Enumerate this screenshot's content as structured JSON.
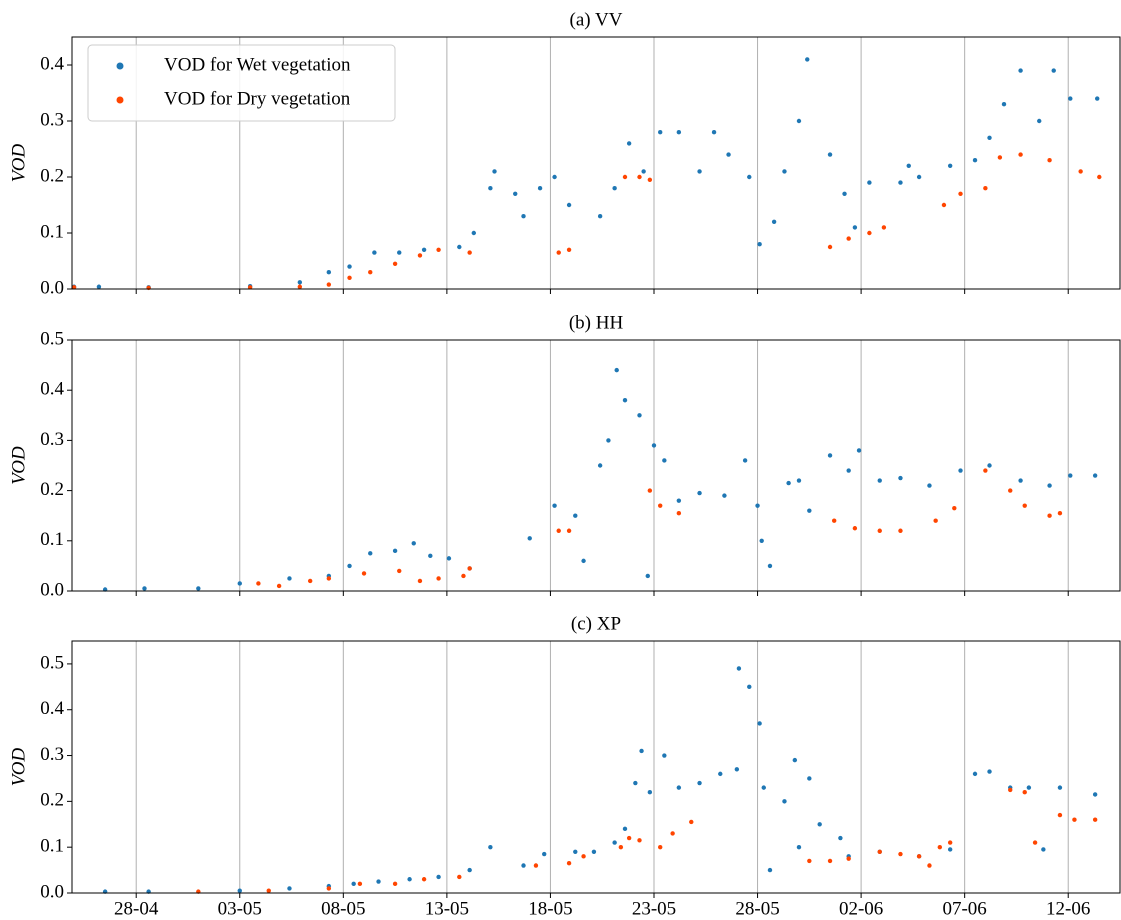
{
  "chart_data": [
    {
      "type": "scatter",
      "title": "(a) VV",
      "ylabel": "VOD",
      "xlim": [
        -3.1,
        47.5
      ],
      "ylim": [
        0,
        0.45
      ],
      "yticks": [
        {
          "value": 0,
          "label": "0.0"
        },
        0.1,
        0.2,
        0.3,
        0.4
      ],
      "grid": "x",
      "legend": "upper left",
      "series": [
        {
          "name": "VOD for Wet vegetation",
          "color": "#1f77b4",
          "x": [
            -3.0,
            -1.8,
            0.6,
            5.5,
            7.9,
            9.3,
            10.3,
            11.5,
            12.7,
            13.9,
            15.6,
            16.3,
            17.1,
            17.3,
            18.3,
            18.7,
            19.5,
            20.2,
            20.9,
            22.4,
            23.1,
            23.8,
            24.5,
            25.3,
            26.2,
            27.2,
            27.9,
            28.6,
            29.6,
            30.1,
            30.8,
            31.3,
            32.0,
            32.4,
            33.5,
            34.2,
            34.7,
            35.4,
            36.9,
            37.3,
            37.8,
            39.3,
            40.5,
            41.2,
            41.9,
            42.7,
            43.6,
            44.3,
            45.1,
            46.4
          ],
          "values": [
            0.004,
            0.004,
            0.003,
            0.005,
            0.012,
            0.03,
            0.04,
            0.065,
            0.065,
            0.07,
            0.075,
            0.1,
            0.18,
            0.21,
            0.17,
            0.13,
            0.18,
            0.2,
            0.15,
            0.13,
            0.18,
            0.26,
            0.21,
            0.28,
            0.28,
            0.21,
            0.28,
            0.24,
            0.2,
            0.08,
            0.12,
            0.21,
            0.3,
            0.41,
            0.24,
            0.17,
            0.11,
            0.19,
            0.19,
            0.22,
            0.2,
            0.22,
            0.23,
            0.27,
            0.33,
            0.39,
            0.3,
            0.39,
            0.34,
            0.34
          ]
        },
        {
          "name": "VOD for Dry vegetation",
          "color": "#ff4500",
          "x": [
            -3.0,
            0.6,
            5.5,
            7.9,
            9.3,
            10.3,
            11.3,
            12.5,
            13.7,
            14.6,
            16.1,
            20.4,
            20.9,
            23.6,
            24.3,
            24.8,
            33.5,
            34.4,
            35.4,
            36.1,
            39.0,
            39.8,
            41.0,
            41.7,
            42.7,
            44.1,
            45.6,
            46.5
          ],
          "values": [
            0.003,
            0.002,
            0.003,
            0.004,
            0.008,
            0.02,
            0.03,
            0.045,
            0.06,
            0.07,
            0.065,
            0.065,
            0.07,
            0.2,
            0.2,
            0.195,
            0.075,
            0.09,
            0.1,
            0.11,
            0.15,
            0.17,
            0.18,
            0.235,
            0.24,
            0.23,
            0.21,
            0.2
          ]
        }
      ]
    },
    {
      "type": "scatter",
      "title": "(b) HH",
      "ylabel": "VOD",
      "xlim": [
        -3.1,
        47.5
      ],
      "ylim": [
        0,
        0.5
      ],
      "yticks": [
        {
          "value": 0,
          "label": "0.0"
        },
        0.1,
        0.2,
        0.3,
        0.4,
        0.5
      ],
      "grid": "x",
      "series": [
        {
          "color": "#1f77b4",
          "x": [
            -1.5,
            0.4,
            3.0,
            5.0,
            7.4,
            9.3,
            10.3,
            11.3,
            12.5,
            13.4,
            14.2,
            15.1,
            16.1,
            19.0,
            20.2,
            21.2,
            21.6,
            22.4,
            22.8,
            23.2,
            23.6,
            24.3,
            24.7,
            25.0,
            25.5,
            26.2,
            27.2,
            28.4,
            29.4,
            30.0,
            30.2,
            30.6,
            31.5,
            32.0,
            32.5,
            33.5,
            34.4,
            34.9,
            35.9,
            36.9,
            38.3,
            39.8,
            41.2,
            42.7,
            44.1,
            45.1,
            46.3
          ],
          "values": [
            0.003,
            0.005,
            0.005,
            0.015,
            0.025,
            0.03,
            0.05,
            0.075,
            0.08,
            0.095,
            0.07,
            0.065,
            0.045,
            0.105,
            0.17,
            0.15,
            0.06,
            0.25,
            0.3,
            0.44,
            0.38,
            0.35,
            0.03,
            0.29,
            0.26,
            0.18,
            0.195,
            0.19,
            0.26,
            0.17,
            0.1,
            0.05,
            0.215,
            0.22,
            0.16,
            0.27,
            0.24,
            0.28,
            0.22,
            0.225,
            0.21,
            0.24,
            0.25,
            0.22,
            0.21,
            0.23,
            0.23
          ]
        },
        {
          "color": "#ff4500",
          "x": [
            5.9,
            6.9,
            8.4,
            9.3,
            11.0,
            12.7,
            13.7,
            14.6,
            15.8,
            16.1,
            20.4,
            20.9,
            24.8,
            25.3,
            26.2,
            33.7,
            34.7,
            35.9,
            36.9,
            38.6,
            39.5,
            41.0,
            42.2,
            42.9,
            44.1,
            44.6
          ],
          "values": [
            0.015,
            0.01,
            0.02,
            0.025,
            0.035,
            0.04,
            0.02,
            0.025,
            0.03,
            0.045,
            0.12,
            0.12,
            0.2,
            0.17,
            0.155,
            0.14,
            0.125,
            0.12,
            0.12,
            0.14,
            0.165,
            0.24,
            0.2,
            0.17,
            0.15,
            0.155
          ]
        }
      ]
    },
    {
      "type": "scatter",
      "title": "(c) XP",
      "ylabel": "VOD",
      "xlim": [
        -3.1,
        47.5
      ],
      "ylim": [
        0,
        0.55
      ],
      "yticks": [
        {
          "value": 0,
          "label": "0.0"
        },
        0.1,
        0.2,
        0.3,
        0.4,
        0.5
      ],
      "grid": "x",
      "xticks": [
        {
          "value": 0,
          "label": "28-04"
        },
        {
          "value": 5,
          "label": "03-05"
        },
        {
          "value": 10,
          "label": "08-05"
        },
        {
          "value": 15,
          "label": "13-05"
        },
        {
          "value": 20,
          "label": "18-05"
        },
        {
          "value": 25,
          "label": "23-05"
        },
        {
          "value": 30,
          "label": "28-05"
        },
        {
          "value": 35,
          "label": "02-06"
        },
        {
          "value": 40,
          "label": "07-06"
        },
        {
          "value": 45,
          "label": "12-06"
        }
      ],
      "series": [
        {
          "color": "#1f77b4",
          "x": [
            -1.5,
            0.6,
            5.0,
            7.4,
            9.3,
            10.5,
            11.7,
            13.2,
            14.6,
            16.1,
            17.1,
            18.7,
            19.7,
            21.2,
            22.1,
            23.1,
            23.6,
            24.1,
            24.4,
            24.8,
            25.5,
            26.2,
            27.2,
            28.2,
            29.0,
            29.1,
            29.6,
            30.1,
            30.3,
            30.6,
            31.3,
            31.8,
            32.0,
            32.5,
            33.0,
            34.0,
            34.4,
            35.9,
            37.8,
            39.3,
            40.5,
            41.2,
            42.2,
            43.1,
            43.8,
            44.6,
            46.3
          ],
          "values": [
            0.003,
            0.003,
            0.005,
            0.01,
            0.015,
            0.02,
            0.025,
            0.03,
            0.035,
            0.05,
            0.1,
            0.06,
            0.085,
            0.09,
            0.09,
            0.11,
            0.14,
            0.24,
            0.31,
            0.22,
            0.3,
            0.23,
            0.24,
            0.26,
            0.27,
            0.49,
            0.45,
            0.37,
            0.23,
            0.05,
            0.2,
            0.29,
            0.1,
            0.25,
            0.15,
            0.12,
            0.08,
            0.09,
            0.08,
            0.095,
            0.26,
            0.265,
            0.23,
            0.23,
            0.095,
            0.23,
            0.215
          ]
        },
        {
          "color": "#ff4500",
          "x": [
            3.0,
            6.4,
            9.3,
            10.8,
            12.5,
            13.9,
            15.6,
            19.3,
            20.9,
            21.6,
            23.4,
            23.8,
            24.3,
            25.3,
            25.9,
            26.8,
            32.5,
            33.5,
            34.4,
            35.9,
            36.9,
            37.8,
            38.3,
            38.8,
            39.3,
            42.2,
            42.9,
            43.4,
            44.6,
            45.3,
            46.3
          ],
          "values": [
            0.003,
            0.005,
            0.01,
            0.02,
            0.02,
            0.03,
            0.035,
            0.06,
            0.065,
            0.08,
            0.1,
            0.12,
            0.115,
            0.1,
            0.13,
            0.155,
            0.07,
            0.07,
            0.075,
            0.09,
            0.085,
            0.08,
            0.06,
            0.1,
            0.11,
            0.225,
            0.22,
            0.11,
            0.17,
            0.16,
            0.16
          ]
        }
      ]
    }
  ]
}
